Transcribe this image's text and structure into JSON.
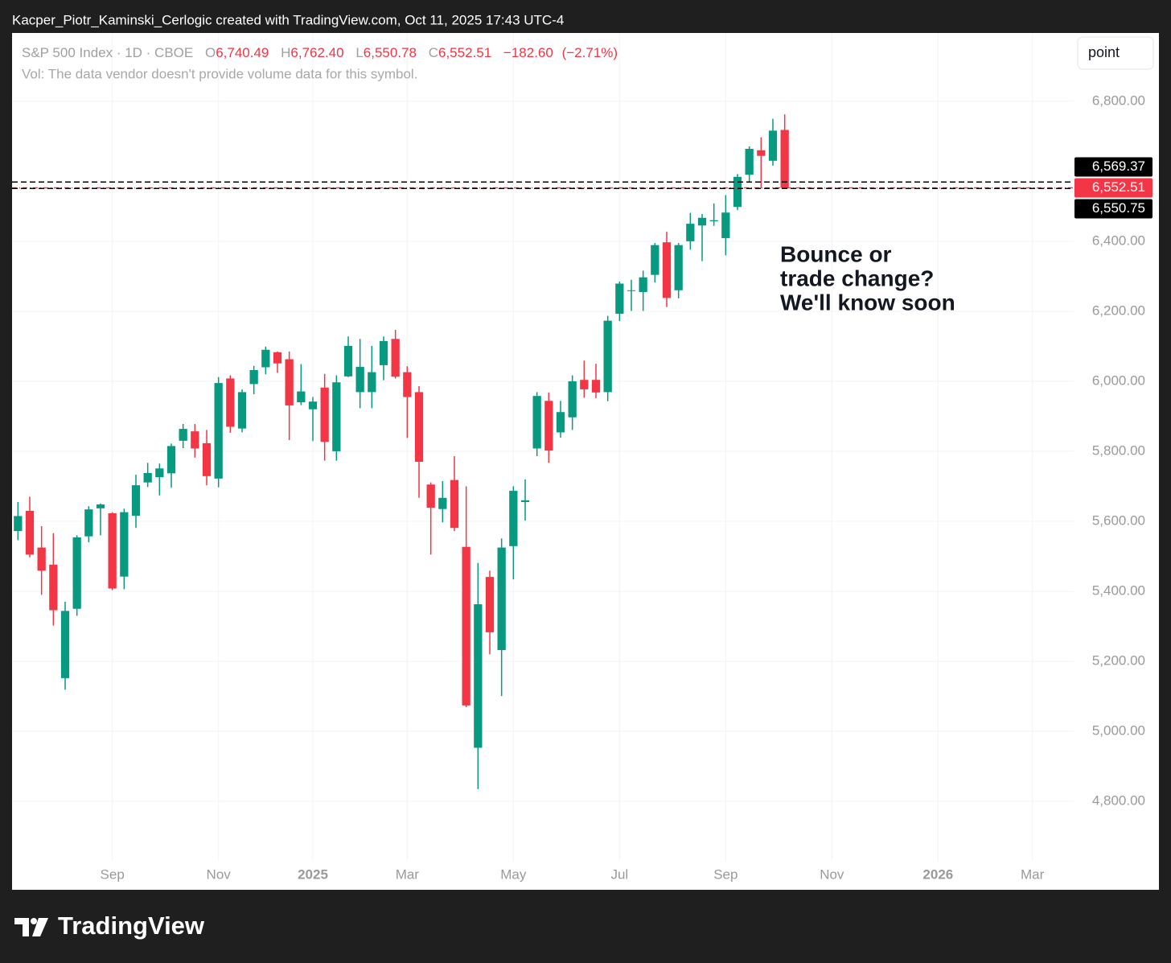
{
  "header": "Kacper_Piotr_Kaminski_Cerlogic created with TradingView.com, Oct 11, 2025 17:43 UTC-4",
  "toolbar_button": "point",
  "footer_logo": "TradingView",
  "chart_data": {
    "type": "candlestick",
    "title": "S&P 500 Index · 1D · CBOE",
    "ohlc_legend": {
      "letters": [
        "O",
        "H",
        "L",
        "C"
      ],
      "values": [
        {
          "value": 6740.49,
          "label": "6,740.49"
        },
        {
          "value": 6762.4,
          "label": "6,762.40"
        },
        {
          "value": 6550.78,
          "label": "6,550.78"
        },
        {
          "value": 6552.51,
          "label": "6,552.51"
        }
      ],
      "change": {
        "value": -182.6,
        "label": "−182.60"
      },
      "change_percent": {
        "value": -2.71,
        "label": "(−2.71%)"
      }
    },
    "volume_note": "Vol: The data vendor doesn't provide volume data for this symbol.",
    "annotation": [
      "Bounce or",
      "trade change?",
      "We'll know soon"
    ],
    "up_color": "#089981",
    "down_color": "#f23645",
    "grid": true,
    "categories": [
      null,
      null,
      null,
      null,
      null,
      null,
      null,
      null,
      "Sep",
      null,
      null,
      null,
      null,
      null,
      null,
      null,
      null,
      "Nov",
      null,
      null,
      null,
      null,
      null,
      null,
      null,
      "2025",
      null,
      null,
      null,
      null,
      null,
      null,
      null,
      "Mar",
      null,
      null,
      null,
      null,
      null,
      null,
      null,
      null,
      "May",
      null,
      null,
      null,
      null,
      null,
      null,
      null,
      null,
      "Jul",
      null,
      null,
      null,
      null,
      null,
      null,
      null,
      null,
      "Sep",
      null,
      null,
      null,
      null,
      null,
      null,
      null,
      null,
      "Nov",
      null,
      null,
      null,
      null,
      null,
      null,
      null,
      null,
      "2026",
      null,
      null,
      null,
      null,
      null,
      null,
      null,
      "Mar",
      null,
      null,
      null
    ],
    "open": [
      5572,
      5630,
      5525,
      5476,
      5152,
      5350,
      5557,
      5637,
      5623,
      5442,
      5616,
      5711,
      5726,
      5737,
      5830,
      5857,
      5823,
      5722,
      6008,
      5865,
      5992,
      6040,
      6083,
      6063,
      5940,
      5920,
      5982,
      5800,
      6014,
      5969,
      5969,
      6046,
      6121,
      6026,
      5969,
      5705,
      5635,
      5718,
      5527,
      4953,
      5441,
      5232,
      5529,
      5655,
      5808,
      5944,
      5854,
      5897,
      6004,
      6004,
      5969,
      6193,
      6260,
      6255,
      6304,
      6397,
      6260,
      6400,
      6445,
      6457,
      6409,
      6498,
      6590,
      6660,
      6630,
      6718,
      null,
      null,
      null,
      null,
      null,
      null,
      null,
      null,
      null,
      null,
      null,
      null,
      null,
      null,
      null,
      null,
      null,
      null,
      null,
      null,
      null,
      null,
      null,
      null
    ],
    "high": [
      5655,
      5670,
      5586,
      5566,
      5370,
      5560,
      5643,
      5651,
      5626,
      5636,
      5733,
      5767,
      5765,
      5822,
      5878,
      5878,
      5861,
      6012,
      6017,
      5977,
      6044,
      6099,
      6085,
      6085,
      6049,
      5955,
      6021,
      6017,
      6128,
      6121,
      6101,
      6128,
      6147,
      6043,
      5986,
      5711,
      5715,
      5786,
      5700,
      5481,
      5459,
      5551,
      5700,
      5720,
      5969,
      5968,
      5944,
      6017,
      6059,
      6050,
      6187,
      6285,
      6290,
      6316,
      6395,
      6427,
      6395,
      6481,
      6478,
      6508,
      6532,
      6592,
      6671,
      6697,
      6750,
      6762.4,
      null,
      null,
      null,
      null,
      null,
      null,
      null,
      null,
      null,
      null,
      null,
      null,
      null,
      null,
      null,
      null,
      null,
      null,
      null,
      null,
      null,
      null,
      null,
      null
    ],
    "low": [
      5546,
      5497,
      5390,
      5302,
      5119,
      5330,
      5540,
      5560,
      5403,
      5406,
      5581,
      5698,
      5674,
      5696,
      5809,
      5782,
      5703,
      5697,
      5853,
      5854,
      5963,
      6020,
      6024,
      5832,
      5932,
      5829,
      5773,
      5773,
      6012,
      5923,
      5923,
      6003,
      6008,
      5838,
      5667,
      5505,
      5597,
      5572,
      5069,
      4835,
      5220,
      5101,
      5434,
      5602,
      5786,
      5767,
      5839,
      5861,
      5953,
      5952,
      5943,
      6172,
      6201,
      6201,
      6282,
      6212,
      6237,
      6376,
      6343,
      6444,
      6360,
      6489,
      6570,
      6552,
      6616,
      6550.78,
      null,
      null,
      null,
      null,
      null,
      null,
      null,
      null,
      null,
      null,
      null,
      null,
      null,
      null,
      null,
      null,
      null,
      null,
      null,
      null,
      null,
      null,
      null,
      null
    ],
    "close": [
      5615,
      5505,
      5459,
      5346,
      5344,
      5554,
      5634,
      5648,
      5408,
      5626,
      5703,
      5738,
      5751,
      5815,
      5864,
      5808,
      5729,
      5995,
      5870,
      5969,
      6032,
      6090,
      6051,
      5931,
      5971,
      5942,
      5827,
      5997,
      6101,
      6041,
      6026,
      6115,
      6013,
      5955,
      5770,
      5639,
      5667,
      5581,
      5074,
      5363,
      5283,
      5525,
      5687,
      5660,
      5958,
      5802,
      5912,
      6000,
      5977,
      5968,
      6173,
      6279,
      6260,
      6297,
      6389,
      6238,
      6389,
      6450,
      6467,
      6460,
      6482,
      6584,
      6664,
      6644,
      6716,
      6552.51,
      null,
      null,
      null,
      null,
      null,
      null,
      null,
      null,
      null,
      null,
      null,
      null,
      null,
      null,
      null,
      null,
      null,
      null,
      null,
      null,
      null,
      null,
      null,
      null
    ],
    "ylim": [
      4630,
      6995
    ],
    "yticks": [
      {
        "value": 4800,
        "label": "4,800.00"
      },
      {
        "value": 5000,
        "label": "5,000.00"
      },
      {
        "value": 5200,
        "label": "5,200.00"
      },
      {
        "value": 5400,
        "label": "5,400.00"
      },
      {
        "value": 5600,
        "label": "5,600.00"
      },
      {
        "value": 5800,
        "label": "5,800.00"
      },
      {
        "value": 6000,
        "label": "6,000.00"
      },
      {
        "value": 6200,
        "label": "6,200.00"
      },
      {
        "value": 6400,
        "label": "6,400.00"
      },
      {
        "value": 6800,
        "label": "6,800.00"
      }
    ],
    "price_lines": [
      {
        "value": 6569.37,
        "label": "6,569.37",
        "color": "#000000",
        "style": "dashed"
      },
      {
        "value": 6552.51,
        "label": "6,552.51",
        "color": "#f23645",
        "style": "dashdot"
      },
      {
        "value": 6550.75,
        "label": "6,550.75",
        "color": "#000000",
        "style": "dashed"
      }
    ]
  }
}
